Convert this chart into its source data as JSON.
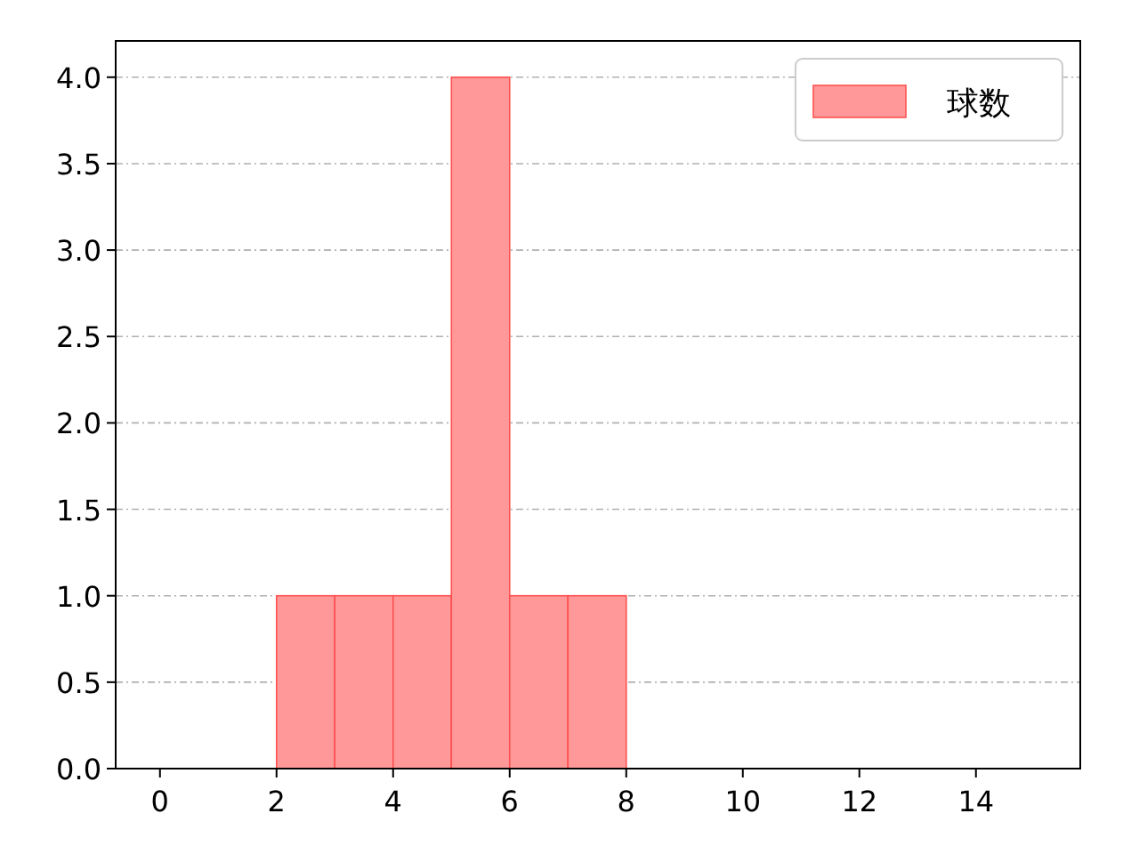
{
  "chart_data": {
    "type": "histogram",
    "bins": [
      2,
      3,
      4,
      5,
      6,
      7,
      8
    ],
    "series": [
      {
        "name": "球数",
        "color": "#ff9999",
        "values": [
          1,
          1,
          1,
          4,
          1,
          1
        ]
      }
    ],
    "xlim": [
      -0.76,
      15.79
    ],
    "ylim": [
      0,
      4.21
    ],
    "xticks": [
      0,
      2,
      4,
      6,
      8,
      10,
      12,
      14
    ],
    "yticks": [
      {
        "value": 0,
        "label": "0.0"
      },
      {
        "value": 0.5,
        "label": "0.5"
      },
      {
        "value": 1,
        "label": "1.0"
      },
      {
        "value": 1.5,
        "label": "1.5"
      },
      {
        "value": 2,
        "label": "2.0"
      },
      {
        "value": 2.5,
        "label": "2.5"
      },
      {
        "value": 3,
        "label": "3.0"
      },
      {
        "value": 3.5,
        "label": "3.5"
      },
      {
        "value": 4,
        "label": "4.0"
      }
    ],
    "grid": "y",
    "legend": "top right"
  }
}
